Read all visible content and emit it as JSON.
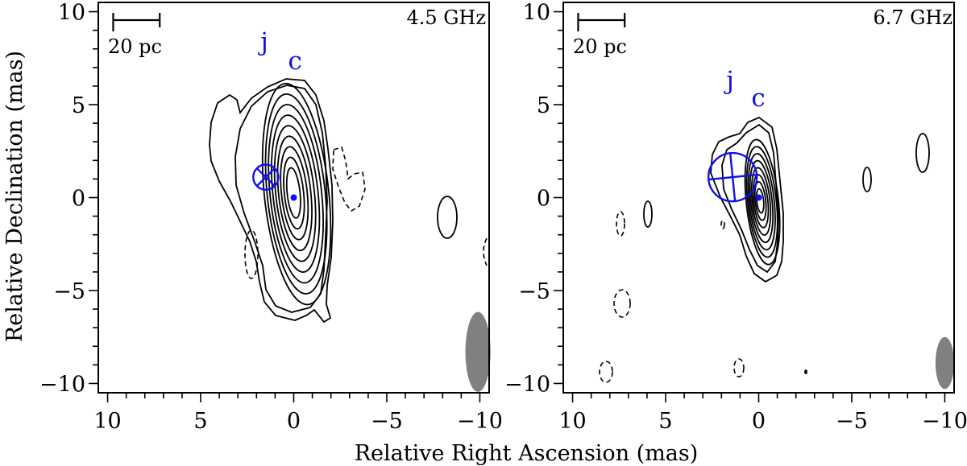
{
  "chart_data": {
    "type": "contour",
    "xlabel": "Relative Right Ascension (mas)",
    "ylabel": "Relative Declination (mas)",
    "xlim": [
      10.5,
      -10.5
    ],
    "ylim": [
      -10.5,
      10.5
    ],
    "xticks": [
      10,
      5,
      0,
      -5,
      -10
    ],
    "xtick_labels": [
      "10",
      "5",
      "0",
      "−5",
      "−10"
    ],
    "yticks": [
      10,
      5,
      0,
      -5,
      -10
    ],
    "ytick_labels": [
      "10",
      "5",
      "0",
      "−5",
      "−10"
    ],
    "panels": [
      {
        "frequency_label": "4.5 GHz",
        "scale_bar_label": "20 pc",
        "scale_bar_mas": [
          9.7,
          7.2
        ],
        "components": [
          {
            "label": "j",
            "x": 1.5,
            "y": 1.1,
            "size": 1.35,
            "marker": "circle-x"
          },
          {
            "label": "c",
            "x": 0.0,
            "y": 0.0,
            "size": 0.2,
            "marker": "dot"
          }
        ],
        "contour_levels": 11,
        "beam": {
          "x": -9.9,
          "y": -8.3,
          "major": 4.3,
          "minor": 1.35,
          "pa_deg": 0
        }
      },
      {
        "frequency_label": "6.7 GHz",
        "scale_bar_label": "20 pc",
        "scale_bar_mas": [
          9.7,
          7.2
        ],
        "components": [
          {
            "label": "j",
            "x": 1.4,
            "y": 1.1,
            "size": 2.6,
            "marker": "circle-cross"
          },
          {
            "label": "c",
            "x": 0.0,
            "y": 0.0,
            "size": 0.15,
            "marker": "dot"
          }
        ],
        "contour_levels": 10,
        "beam": {
          "x": -10.0,
          "y": -8.9,
          "major": 2.8,
          "minor": 1.0,
          "pa_deg": 0
        }
      }
    ],
    "colors": {
      "component": "#1010ee",
      "contour": "#000000",
      "beam": "#808080"
    }
  }
}
